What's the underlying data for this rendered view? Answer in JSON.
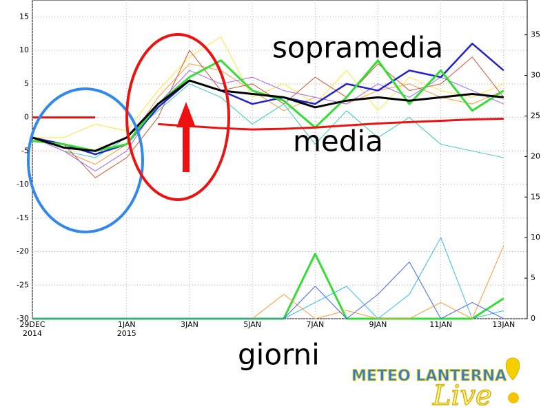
{
  "chart_data": {
    "type": "line",
    "x": [
      0,
      1,
      2,
      3,
      4,
      5,
      6,
      7,
      8,
      9,
      10,
      11,
      12,
      13,
      14,
      15
    ],
    "xlim": [
      0,
      15.75
    ],
    "xticks": [
      {
        "value": 0,
        "label": "29DEC"
      },
      {
        "value": 3,
        "label": "1JAN"
      },
      {
        "value": 5,
        "label": "3JAN"
      },
      {
        "value": 7,
        "label": "5JAN"
      },
      {
        "value": 9,
        "label": "7JAN"
      },
      {
        "value": 11,
        "label": "9JAN"
      },
      {
        "value": 13,
        "label": "11JAN"
      },
      {
        "value": 15,
        "label": "13JAN"
      }
    ],
    "xtick_years": [
      {
        "value": 0,
        "label": "2014"
      },
      {
        "value": 3,
        "label": "2015"
      }
    ],
    "ylim": [
      -30,
      17.5
    ],
    "yticks": [
      -30,
      -25,
      -20,
      -15,
      -10,
      -5,
      0,
      5,
      10,
      15
    ],
    "y2lim": [
      0,
      39.3
    ],
    "y2ticks": [
      0,
      5,
      10,
      15,
      20,
      25,
      30,
      35
    ],
    "grid": true,
    "series": [
      {
        "color": "#ff9933",
        "width": 1,
        "values": [
          -3,
          -5,
          -7,
          -4,
          3,
          8,
          7,
          4,
          1,
          3,
          2,
          4,
          5,
          3,
          2,
          4
        ]
      },
      {
        "color": "#ffe633",
        "width": 1,
        "values": [
          -3,
          -3,
          -1,
          -2,
          4,
          9,
          12,
          3,
          5,
          2,
          7,
          1,
          6,
          4,
          3,
          5
        ]
      },
      {
        "color": "#33ccbb",
        "width": 1,
        "values": [
          -3,
          -5,
          -6,
          -3,
          1,
          5,
          3,
          -1,
          2,
          -4,
          1,
          -3,
          0,
          -4,
          -5,
          -6
        ]
      },
      {
        "color": "#cc5533",
        "width": 1,
        "values": [
          -3,
          -4,
          -9,
          -6,
          0,
          10,
          4,
          5,
          2,
          6,
          3,
          8,
          4,
          5,
          9,
          3
        ]
      },
      {
        "color": "#9966ff",
        "width": 1,
        "values": [
          -3,
          -5,
          -8,
          -5,
          2,
          7,
          5,
          6,
          4,
          3,
          2,
          5,
          3,
          6,
          4,
          2
        ]
      },
      {
        "color": "#2222cc",
        "width": 2.5,
        "values": [
          -3,
          -4,
          -5.5,
          -4,
          1.5,
          5.5,
          4,
          2,
          3,
          2,
          5,
          4,
          7,
          6,
          11,
          7
        ]
      },
      {
        "color": "#33dd33",
        "width": 3,
        "values": [
          -3.5,
          -4,
          -5,
          -4,
          2,
          6,
          8.5,
          4,
          2.5,
          -1.5,
          3,
          8.5,
          2,
          7,
          1,
          4
        ]
      },
      {
        "color": "#000000",
        "width": 3,
        "values": [
          -3,
          -4.5,
          -5,
          -3,
          2,
          5.5,
          4,
          3.5,
          3,
          1.5,
          2.5,
          3,
          2.5,
          3,
          3.5,
          3
        ]
      },
      {
        "color": "#ee1111",
        "width": 3,
        "values": [
          0,
          0,
          0,
          null,
          -1,
          -1.3,
          -1.6,
          -1.8,
          -1.7,
          -1.5,
          -1.2,
          -0.9,
          -0.7,
          -0.5,
          -0.3,
          -0.2
        ]
      },
      {
        "color": "#33dd33",
        "width": 3,
        "axis": "y2",
        "values": [
          0,
          0,
          0,
          0,
          0,
          0,
          0,
          0,
          0,
          8,
          0,
          0,
          0,
          0,
          0,
          2.5
        ]
      },
      {
        "color": "#33bbee",
        "width": 1,
        "axis": "y2",
        "values": [
          0,
          0,
          0,
          0,
          0,
          0,
          0,
          0,
          0,
          2,
          4,
          0,
          3,
          10,
          0,
          1
        ]
      },
      {
        "color": "#ff9933",
        "width": 1,
        "axis": "y2",
        "values": [
          0,
          0,
          0,
          0,
          0,
          0,
          0,
          0,
          3,
          0,
          1,
          0,
          0,
          2,
          0,
          9
        ]
      },
      {
        "color": "#4466ee",
        "width": 1,
        "axis": "y2",
        "values": [
          0,
          0,
          0,
          0,
          0,
          0,
          0,
          0,
          0,
          4,
          0,
          3,
          7,
          0,
          2,
          0
        ]
      }
    ],
    "annotations": [
      {
        "text": "sopramedia",
        "color": "#ee1111"
      },
      {
        "text": "media",
        "color": "#ee1111"
      },
      {
        "text": "giorni",
        "color": "#22cc22"
      }
    ],
    "logo": {
      "name": "METEO LANTERNA",
      "tag": "Live"
    }
  }
}
